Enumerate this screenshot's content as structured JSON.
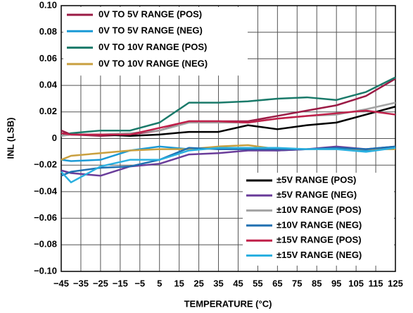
{
  "chart_data": {
    "type": "line",
    "xlabel": "TEMPERATURE (°C)",
    "ylabel": "INL (LSB)",
    "x": [
      -45,
      -40,
      -25,
      -10,
      5,
      20,
      35,
      50,
      65,
      80,
      95,
      110,
      125
    ],
    "xlim": [
      -45,
      125
    ],
    "xticks": [
      {
        "value": -45,
        "label": "−45"
      },
      {
        "value": -35,
        "label": "−35"
      },
      {
        "value": -25,
        "label": "−25"
      },
      {
        "value": -15,
        "label": "−15"
      },
      {
        "value": -5,
        "label": "−5"
      },
      5,
      15,
      25,
      35,
      45,
      55,
      65,
      75,
      85,
      95,
      105,
      115,
      125
    ],
    "ylim": [
      -0.1,
      0.1
    ],
    "yticks": [
      {
        "value": -0.1,
        "label": "−0.10"
      },
      {
        "value": -0.08,
        "label": "−0.08"
      },
      {
        "value": -0.06,
        "label": "−0.06"
      },
      {
        "value": -0.04,
        "label": "−0.04"
      },
      {
        "value": -0.02,
        "label": "−0.02"
      },
      0,
      {
        "value": 0.02,
        "label": "0.02"
      },
      {
        "value": 0.04,
        "label": "0.04"
      },
      {
        "value": 0.06,
        "label": "0.06"
      },
      {
        "value": 0.08,
        "label": "0.08"
      },
      {
        "value": 0.1,
        "label": "0.10"
      }
    ],
    "grid": true,
    "series": [
      {
        "name": "0V TO 5V RANGE (POS)",
        "color": "#9b1b45",
        "legend": "upper left",
        "values": [
          0.006,
          0.003,
          0.002,
          0.003,
          0.006,
          0.013,
          0.013,
          0.013,
          0.017,
          0.021,
          0.025,
          0.032,
          0.045
        ]
      },
      {
        "name": "0V TO 5V RANGE (NEG)",
        "color": "#1a9ad6",
        "legend": "upper left",
        "values": [
          -0.016,
          -0.017,
          -0.016,
          -0.009,
          -0.006,
          -0.008,
          -0.007,
          -0.008,
          -0.009,
          -0.008,
          -0.007,
          -0.009,
          -0.007
        ]
      },
      {
        "name": "0V TO 10V RANGE (POS)",
        "color": "#1a7a6a",
        "legend": "upper left",
        "values": [
          0.002,
          0.004,
          0.006,
          0.006,
          0.012,
          0.027,
          0.027,
          0.028,
          0.03,
          0.031,
          0.029,
          0.035,
          0.046
        ]
      },
      {
        "name": "0V TO 10V RANGE (NEG)",
        "color": "#c9a040",
        "legend": "upper left",
        "values": [
          -0.016,
          -0.013,
          -0.011,
          -0.009,
          -0.008,
          -0.008,
          -0.006,
          -0.005,
          -0.008,
          -0.008,
          -0.008,
          -0.008,
          -0.008
        ]
      },
      {
        "name": "±5V RANGE (POS)",
        "color": "#000000",
        "legend": "lower right",
        "values": [
          0.004,
          0.003,
          0.003,
          0.002,
          0.003,
          0.005,
          0.005,
          0.01,
          0.007,
          0.01,
          0.012,
          0.018,
          0.024
        ]
      },
      {
        "name": "±5V RANGE (NEG)",
        "color": "#6a3d9a",
        "legend": "lower right",
        "values": [
          -0.024,
          -0.026,
          -0.028,
          -0.021,
          -0.019,
          -0.012,
          -0.011,
          -0.009,
          -0.009,
          -0.008,
          -0.006,
          -0.008,
          -0.006
        ]
      },
      {
        "name": "±10V RANGE (POS)",
        "color": "#a3a3a3",
        "legend": "lower right",
        "values": [
          0.002,
          0.003,
          0.003,
          0.004,
          0.006,
          0.012,
          0.012,
          0.012,
          0.015,
          0.017,
          0.018,
          0.022,
          0.027
        ]
      },
      {
        "name": "±10V RANGE (NEG)",
        "color": "#1f6fb0",
        "legend": "lower right",
        "values": [
          -0.028,
          -0.025,
          -0.022,
          -0.021,
          -0.016,
          -0.007,
          -0.008,
          -0.008,
          -0.008,
          -0.008,
          -0.007,
          -0.008,
          -0.006
        ]
      },
      {
        "name": "±15V RANGE (POS)",
        "color": "#c0204a",
        "legend": "lower right",
        "values": [
          0.004,
          0.003,
          0.003,
          0.003,
          0.008,
          0.013,
          0.013,
          0.012,
          0.015,
          0.017,
          0.019,
          0.021,
          0.018
        ]
      },
      {
        "name": "±15V RANGE (NEG)",
        "color": "#2ab0e0",
        "legend": "lower right",
        "values": [
          -0.025,
          -0.033,
          -0.021,
          -0.016,
          -0.016,
          -0.009,
          -0.007,
          -0.007,
          -0.007,
          -0.008,
          -0.008,
          -0.01,
          -0.007
        ]
      }
    ]
  }
}
